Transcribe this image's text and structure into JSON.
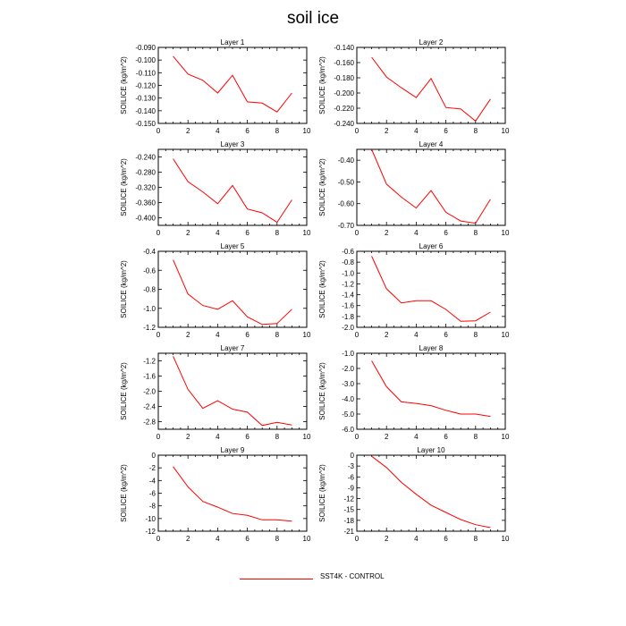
{
  "title": "soil ice",
  "legend": {
    "label": "SST4K - CONTROL",
    "color": "#ff0000"
  },
  "chart_data": [
    {
      "type": "line",
      "title": "Layer 1",
      "ylabel": "SOILICE  (kg/m^2)",
      "xlim": [
        0,
        10
      ],
      "x_ticks": [
        0,
        2,
        4,
        6,
        8,
        10
      ],
      "ylim": [
        -0.15,
        -0.09
      ],
      "y_ticks": [
        -0.15,
        -0.14,
        -0.13,
        -0.12,
        -0.11,
        -0.1,
        -0.09
      ],
      "y_tick_labels": [
        "-0.150",
        "-0.140",
        "-0.130",
        "-0.120",
        "-0.110",
        "-0.100",
        "-0.090"
      ],
      "series": [
        {
          "x": [
            1,
            2,
            3,
            4,
            5,
            6,
            7,
            8,
            9
          ],
          "values": [
            -0.097,
            -0.111,
            -0.116,
            -0.126,
            -0.112,
            -0.133,
            -0.134,
            -0.141,
            -0.126
          ],
          "color": "#ff0000"
        }
      ]
    },
    {
      "type": "line",
      "title": "Layer 2",
      "ylabel": "SOILICE  (kg/m^2)",
      "xlim": [
        0,
        10
      ],
      "x_ticks": [
        0,
        2,
        4,
        6,
        8,
        10
      ],
      "ylim": [
        -0.24,
        -0.14
      ],
      "y_ticks": [
        -0.24,
        -0.22,
        -0.2,
        -0.18,
        -0.16,
        -0.14
      ],
      "y_tick_labels": [
        "-0.240",
        "-0.220",
        "-0.200",
        "-0.180",
        "-0.160",
        "-0.140"
      ],
      "series": [
        {
          "x": [
            1,
            2,
            3,
            4,
            5,
            6,
            7,
            8,
            9
          ],
          "values": [
            -0.153,
            -0.179,
            -0.193,
            -0.206,
            -0.181,
            -0.219,
            -0.221,
            -0.237,
            -0.208
          ],
          "color": "#ff0000"
        }
      ]
    },
    {
      "type": "line",
      "title": "Layer 3",
      "ylabel": "SOILICE  (kg/m^2)",
      "xlim": [
        0,
        10
      ],
      "x_ticks": [
        0,
        2,
        4,
        6,
        8,
        10
      ],
      "ylim": [
        -0.42,
        -0.22
      ],
      "y_ticks": [
        -0.4,
        -0.36,
        -0.32,
        -0.28,
        -0.24
      ],
      "y_tick_labels": [
        "-0.400",
        "-0.360",
        "-0.320",
        "-0.280",
        "-0.240"
      ],
      "series": [
        {
          "x": [
            1,
            2,
            3,
            4,
            5,
            6,
            7,
            8,
            9
          ],
          "values": [
            -0.245,
            -0.305,
            -0.332,
            -0.363,
            -0.315,
            -0.377,
            -0.387,
            -0.412,
            -0.353
          ],
          "color": "#ff0000"
        }
      ]
    },
    {
      "type": "line",
      "title": "Layer 4",
      "ylabel": "SOILICE  (kg/m^2)",
      "xlim": [
        0,
        10
      ],
      "x_ticks": [
        0,
        2,
        4,
        6,
        8,
        10
      ],
      "ylim": [
        -0.7,
        -0.35
      ],
      "y_ticks": [
        -0.7,
        -0.6,
        -0.5,
        -0.4
      ],
      "y_tick_labels": [
        "-0.70",
        "-0.60",
        "-0.50",
        "-0.40"
      ],
      "series": [
        {
          "x": [
            1,
            2,
            3,
            4,
            5,
            6,
            7,
            8,
            9
          ],
          "values": [
            -0.35,
            -0.51,
            -0.57,
            -0.62,
            -0.54,
            -0.64,
            -0.68,
            -0.69,
            -0.58
          ],
          "color": "#ff0000"
        }
      ]
    },
    {
      "type": "line",
      "title": "Layer 5",
      "ylabel": "SOILICE  (kg/m^2)",
      "xlim": [
        0,
        10
      ],
      "x_ticks": [
        0,
        2,
        4,
        6,
        8,
        10
      ],
      "ylim": [
        -1.2,
        -0.4
      ],
      "y_ticks": [
        -1.2,
        -1.0,
        -0.8,
        -0.6,
        -0.4
      ],
      "y_tick_labels": [
        "-1.2",
        "-1.0",
        "-0.8",
        "-0.6",
        "-0.4"
      ],
      "series": [
        {
          "x": [
            1,
            2,
            3,
            4,
            5,
            6,
            7,
            8,
            9
          ],
          "values": [
            -0.49,
            -0.85,
            -0.97,
            -1.01,
            -0.92,
            -1.09,
            -1.17,
            -1.16,
            -1.01
          ],
          "color": "#ff0000"
        }
      ]
    },
    {
      "type": "line",
      "title": "Layer 6",
      "ylabel": "SOILICE  (kg/m^2)",
      "xlim": [
        0,
        10
      ],
      "x_ticks": [
        0,
        2,
        4,
        6,
        8,
        10
      ],
      "ylim": [
        -2.0,
        -0.6
      ],
      "y_ticks": [
        -2.0,
        -1.8,
        -1.6,
        -1.4,
        -1.2,
        -1.0,
        -0.8,
        -0.6
      ],
      "y_tick_labels": [
        "-2.0",
        "-1.8",
        "-1.6",
        "-1.4",
        "-1.2",
        "-1.0",
        "-0.8",
        "-0.6"
      ],
      "series": [
        {
          "x": [
            1,
            2,
            3,
            4,
            5,
            6,
            7,
            8,
            9
          ],
          "values": [
            -0.69,
            -1.29,
            -1.55,
            -1.51,
            -1.51,
            -1.67,
            -1.89,
            -1.88,
            -1.72
          ],
          "color": "#ff0000"
        }
      ]
    },
    {
      "type": "line",
      "title": "Layer 7",
      "ylabel": "SOILICE  (kg/m^2)",
      "xlim": [
        0,
        10
      ],
      "x_ticks": [
        0,
        2,
        4,
        6,
        8,
        10
      ],
      "ylim": [
        -3.0,
        -1.0
      ],
      "y_ticks": [
        -2.8,
        -2.4,
        -2.0,
        -1.6,
        -1.2
      ],
      "y_tick_labels": [
        "-2.8",
        "-2.4",
        "-2.0",
        "-1.6",
        "-1.2"
      ],
      "series": [
        {
          "x": [
            1,
            2,
            3,
            4,
            5,
            6,
            7,
            8,
            9
          ],
          "values": [
            -1.08,
            -1.95,
            -2.45,
            -2.25,
            -2.47,
            -2.55,
            -2.9,
            -2.82,
            -2.89
          ],
          "color": "#ff0000"
        }
      ]
    },
    {
      "type": "line",
      "title": "Layer 8",
      "ylabel": "SOILICE  (kg/m^2)",
      "xlim": [
        0,
        10
      ],
      "x_ticks": [
        0,
        2,
        4,
        6,
        8,
        10
      ],
      "ylim": [
        -6.0,
        -1.0
      ],
      "y_ticks": [
        -6.0,
        -5.0,
        -4.0,
        -3.0,
        -2.0,
        -1.0
      ],
      "y_tick_labels": [
        "-6.0",
        "-5.0",
        "-4.0",
        "-3.0",
        "-2.0",
        "-1.0"
      ],
      "series": [
        {
          "x": [
            1,
            2,
            3,
            4,
            5,
            6,
            7,
            8,
            9
          ],
          "values": [
            -1.5,
            -3.2,
            -4.2,
            -4.3,
            -4.45,
            -4.75,
            -5.0,
            -5.0,
            -5.15
          ],
          "color": "#ff0000"
        }
      ]
    },
    {
      "type": "line",
      "title": "Layer 9",
      "ylabel": "SOILICE  (kg/m^2)",
      "xlim": [
        0,
        10
      ],
      "x_ticks": [
        0,
        2,
        4,
        6,
        8,
        10
      ],
      "ylim": [
        -12,
        0
      ],
      "y_ticks": [
        -12,
        -10,
        -8,
        -6,
        -4,
        -2,
        0
      ],
      "y_tick_labels": [
        "-12",
        "-10",
        "-8",
        "-6",
        "-4",
        "-2",
        "0"
      ],
      "series": [
        {
          "x": [
            1,
            2,
            3,
            4,
            5,
            6,
            7,
            8,
            9
          ],
          "values": [
            -1.8,
            -5.0,
            -7.3,
            -8.2,
            -9.2,
            -9.5,
            -10.2,
            -10.2,
            -10.4
          ],
          "color": "#ff0000"
        }
      ]
    },
    {
      "type": "line",
      "title": "Layer 10",
      "ylabel": "SOILICE  (kg/m^2)",
      "xlim": [
        0,
        10
      ],
      "x_ticks": [
        0,
        2,
        4,
        6,
        8,
        10
      ],
      "ylim": [
        -21,
        0
      ],
      "y_ticks": [
        -21,
        -18,
        -15,
        -12,
        -9,
        -6,
        -3,
        0
      ],
      "y_tick_labels": [
        "-21",
        "-18",
        "-15",
        "-12",
        "-9",
        "-6",
        "-3",
        "0"
      ],
      "series": [
        {
          "x": [
            1,
            2,
            3,
            4,
            5,
            6,
            7,
            8,
            9
          ],
          "values": [
            -0.3,
            -3.4,
            -7.5,
            -10.8,
            -13.8,
            -15.8,
            -17.8,
            -19.2,
            -20.0
          ],
          "color": "#ff0000"
        }
      ]
    }
  ]
}
